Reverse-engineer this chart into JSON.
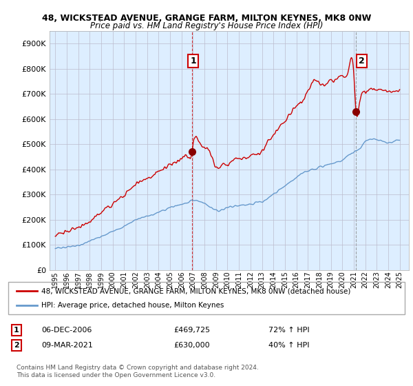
{
  "title": "48, WICKSTEAD AVENUE, GRANGE FARM, MILTON KEYNES, MK8 0NW",
  "subtitle": "Price paid vs. HM Land Registry's House Price Index (HPI)",
  "legend_line1": "48, WICKSTEAD AVENUE, GRANGE FARM, MILTON KEYNES, MK8 0NW (detached house)",
  "legend_line2": "HPI: Average price, detached house, Milton Keynes",
  "annotation1_date": "06-DEC-2006",
  "annotation1_price": "£469,725",
  "annotation1_hpi": "72% ↑ HPI",
  "annotation1_year": 2006.92,
  "annotation1_value": 469725,
  "annotation2_date": "09-MAR-2021",
  "annotation2_price": "£630,000",
  "annotation2_hpi": "40% ↑ HPI",
  "annotation2_year": 2021.19,
  "annotation2_value": 630000,
  "copyright": "Contains HM Land Registry data © Crown copyright and database right 2024.\nThis data is licensed under the Open Government Licence v3.0.",
  "red_color": "#cc0000",
  "blue_color": "#6699cc",
  "chart_bg": "#ddeeff",
  "ylim": [
    0,
    950000
  ],
  "yticks": [
    0,
    100000,
    200000,
    300000,
    400000,
    500000,
    600000,
    700000,
    800000,
    900000
  ],
  "background_color": "#ffffff",
  "grid_color": "#bbbbcc",
  "hpi_xpts": [
    1995,
    1996,
    1997,
    1998,
    1999,
    2000,
    2001,
    2002,
    2003,
    2004,
    2005,
    2006,
    2006.5,
    2007,
    2007.5,
    2008,
    2008.5,
    2009,
    2009.5,
    2010,
    2010.5,
    2011,
    2011.5,
    2012,
    2012.5,
    2013,
    2013.5,
    2014,
    2014.5,
    2015,
    2015.5,
    2016,
    2016.5,
    2017,
    2017.5,
    2018,
    2018.5,
    2019,
    2019.5,
    2020,
    2020.5,
    2021,
    2021.5,
    2022,
    2022.5,
    2023,
    2023.5,
    2024,
    2024.5,
    2025
  ],
  "hpi_ypts": [
    85000,
    92000,
    100000,
    115000,
    135000,
    155000,
    175000,
    200000,
    215000,
    230000,
    248000,
    262000,
    270000,
    278000,
    275000,
    265000,
    250000,
    238000,
    240000,
    248000,
    255000,
    258000,
    260000,
    262000,
    268000,
    272000,
    285000,
    300000,
    318000,
    335000,
    350000,
    368000,
    385000,
    395000,
    402000,
    408000,
    415000,
    420000,
    428000,
    438000,
    455000,
    468000,
    482000,
    510000,
    520000,
    518000,
    512000,
    505000,
    510000,
    518000
  ],
  "red_xpts": [
    1995,
    1996,
    1997,
    1998,
    1999,
    2000,
    2001,
    2002,
    2003,
    2004,
    2005,
    2006,
    2006.5,
    2006.92,
    2007,
    2007.5,
    2008,
    2008.5,
    2009,
    2009.5,
    2010,
    2010.5,
    2011,
    2011.5,
    2012,
    2012.5,
    2013,
    2013.5,
    2014,
    2014.5,
    2015,
    2015.5,
    2016,
    2016.5,
    2017,
    2017.2,
    2017.4,
    2017.6,
    2017.8,
    2018,
    2018.2,
    2018.4,
    2018.6,
    2018.8,
    2019,
    2019.5,
    2020,
    2020.5,
    2021,
    2021.19,
    2021.5,
    2022,
    2022.5,
    2023,
    2023.5,
    2024,
    2024.5,
    2025
  ],
  "red_ypts": [
    140000,
    152000,
    168000,
    195000,
    228000,
    262000,
    296000,
    340000,
    365000,
    390000,
    420000,
    445000,
    455000,
    469725,
    500000,
    510000,
    490000,
    465000,
    408000,
    415000,
    420000,
    438000,
    442000,
    445000,
    455000,
    462000,
    472000,
    510000,
    538000,
    568000,
    593000,
    626000,
    652000,
    670000,
    710000,
    730000,
    748000,
    755000,
    750000,
    742000,
    735000,
    732000,
    738000,
    750000,
    755000,
    760000,
    775000,
    785000,
    778000,
    630000,
    668000,
    710000,
    722000,
    715000,
    712000,
    710000,
    712000,
    718000
  ]
}
